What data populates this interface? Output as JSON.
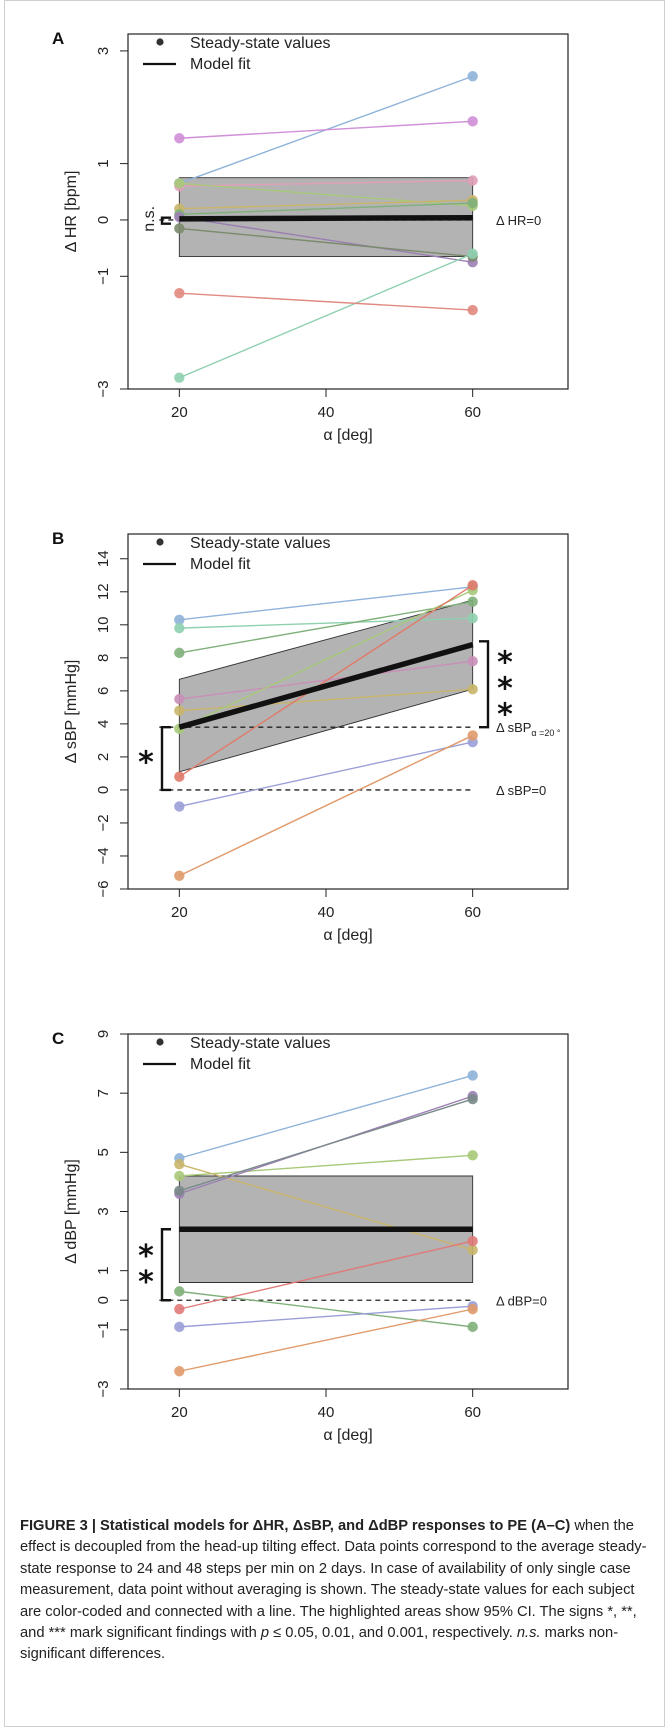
{
  "chart_data": [
    {
      "type": "scatter",
      "panel_label": "A",
      "xlabel": "α [deg]",
      "ylabel": "Δ HR [bpm]",
      "xlim": [
        13,
        73
      ],
      "ylim": [
        -3,
        3.3
      ],
      "xticks": [
        20,
        40,
        60
      ],
      "yticks": [
        -3,
        -1,
        0,
        1,
        3
      ],
      "legend": {
        "position": "top-left",
        "points": "Steady-state values",
        "line": "Model fit"
      },
      "series": [
        {
          "color": "#8fb3d9",
          "values": [
            0.65,
            2.55
          ]
        },
        {
          "color": "#d08fd8",
          "values": [
            1.45,
            1.75
          ]
        },
        {
          "color": "#e0a0b8",
          "values": [
            0.6,
            0.7
          ]
        },
        {
          "color": "#a8c97a",
          "values": [
            0.65,
            0.25
          ]
        },
        {
          "color": "#c9b56a",
          "values": [
            0.2,
            0.35
          ]
        },
        {
          "color": "#7fb07a",
          "values": [
            0.1,
            0.3
          ]
        },
        {
          "color": "#9b7fb3",
          "values": [
            0.05,
            -0.75
          ]
        },
        {
          "color": "#7a8a6a",
          "values": [
            -0.15,
            -0.65
          ]
        },
        {
          "color": "#8fd0b0",
          "values": [
            -2.8,
            -0.6
          ]
        },
        {
          "color": "#e08a80",
          "values": [
            -1.3,
            -1.6
          ]
        }
      ],
      "fit": {
        "values": [
          0.02,
          0.04
        ],
        "ci_lower": [
          -0.65,
          -0.65
        ],
        "ci_upper": [
          0.75,
          0.75
        ]
      },
      "references": [
        {
          "y": 0.0,
          "label": "Δ HR=0"
        }
      ],
      "significance": [
        {
          "label": "n.s.",
          "from": 0.0,
          "to": 0.04
        }
      ]
    },
    {
      "type": "scatter",
      "panel_label": "B",
      "xlabel": "α [deg]",
      "ylabel": "Δ sBP [mmHg]",
      "xlim": [
        13,
        73
      ],
      "ylim": [
        -6,
        15.5
      ],
      "xticks": [
        20,
        40,
        60
      ],
      "yticks": [
        -6,
        -4,
        -2,
        0,
        2,
        4,
        6,
        8,
        10,
        12,
        14
      ],
      "legend": {
        "position": "top-left",
        "points": "Steady-state values",
        "line": "Model fit"
      },
      "series": [
        {
          "color": "#8fb3d9",
          "values": [
            10.3,
            12.3
          ]
        },
        {
          "color": "#8fd0b0",
          "values": [
            9.8,
            10.4
          ]
        },
        {
          "color": "#7fb07a",
          "values": [
            8.3,
            11.4
          ]
        },
        {
          "color": "#c98fb8",
          "values": [
            5.5,
            7.8
          ]
        },
        {
          "color": "#c9b56a",
          "values": [
            4.8,
            6.1
          ]
        },
        {
          "color": "#a8c97a",
          "values": [
            3.7,
            12.1
          ]
        },
        {
          "color": "#e07a6a",
          "values": [
            0.8,
            12.4
          ]
        },
        {
          "color": "#9b9fd8",
          "values": [
            -1.0,
            2.9
          ]
        },
        {
          "color": "#e09a6a",
          "values": [
            -5.2,
            3.3
          ]
        }
      ],
      "fit": {
        "values": [
          3.8,
          8.8
        ],
        "ci_lower": [
          1.1,
          6.1
        ],
        "ci_upper": [
          6.7,
          11.5
        ]
      },
      "references": [
        {
          "y": 3.8,
          "label": "Δ sBP",
          "subscript": "α =20 °"
        },
        {
          "y": 0.0,
          "label": "Δ sBP=0"
        }
      ],
      "significance": [
        {
          "label": "*",
          "from": 0.0,
          "to": 3.8
        },
        {
          "label": "***",
          "from": 3.8,
          "to": 9.0
        }
      ]
    },
    {
      "type": "scatter",
      "panel_label": "C",
      "xlabel": "α [deg]",
      "ylabel": "Δ dBP [mmHg]",
      "xlim": [
        13,
        73
      ],
      "ylim": [
        -3,
        9
      ],
      "xticks": [
        20,
        40,
        60
      ],
      "yticks": [
        -3,
        -1,
        0,
        1,
        3,
        5,
        7,
        9
      ],
      "legend": {
        "position": "top-left",
        "points": "Steady-state values",
        "line": "Model fit"
      },
      "series": [
        {
          "color": "#8fb3d9",
          "values": [
            4.8,
            7.6
          ]
        },
        {
          "color": "#a8c97a",
          "values": [
            4.2,
            4.9
          ]
        },
        {
          "color": "#c9b56a",
          "values": [
            4.6,
            1.7
          ]
        },
        {
          "color": "#9b7fb3",
          "values": [
            3.6,
            6.9
          ]
        },
        {
          "color": "#7a8a8a",
          "values": [
            3.7,
            6.8
          ]
        },
        {
          "color": "#7fb07a",
          "values": [
            0.3,
            -0.9
          ]
        },
        {
          "color": "#e07a7a",
          "values": [
            -0.3,
            2.0
          ]
        },
        {
          "color": "#9b9fd8",
          "values": [
            -0.9,
            -0.2
          ]
        },
        {
          "color": "#e09a6a",
          "values": [
            -2.4,
            -0.3
          ]
        }
      ],
      "fit": {
        "values": [
          2.4,
          2.4
        ],
        "ci_lower": [
          0.6,
          0.6
        ],
        "ci_upper": [
          4.2,
          4.2
        ]
      },
      "references": [
        {
          "y": 0.0,
          "label": "Δ dBP=0"
        }
      ],
      "significance": [
        {
          "label": "**",
          "from": 0.0,
          "to": 2.4
        }
      ]
    }
  ],
  "caption": {
    "figure_label": "FIGURE 3 | Statistical models for ΔHR, ΔsBP, and ΔdBP responses to PE (A–C)",
    "text_1": " when the effect is decoupled from the head-up tilting effect. Data points correspond to the average steady-state response to 24 and 48 steps per min on 2 days. In case of availability of only single case measurement, data point without averaging is shown. The steady-state values for each subject are color-coded and connected with a line. The highlighted areas show 95% CI. The signs *, **, and *** mark significant findings with ",
    "p_symbol": "p",
    "text_2": " ≤ 0.05, 0.01, and 0.001, respectively. ",
    "ns_text": "n.s.",
    "text_3": " marks non-significant differences."
  }
}
